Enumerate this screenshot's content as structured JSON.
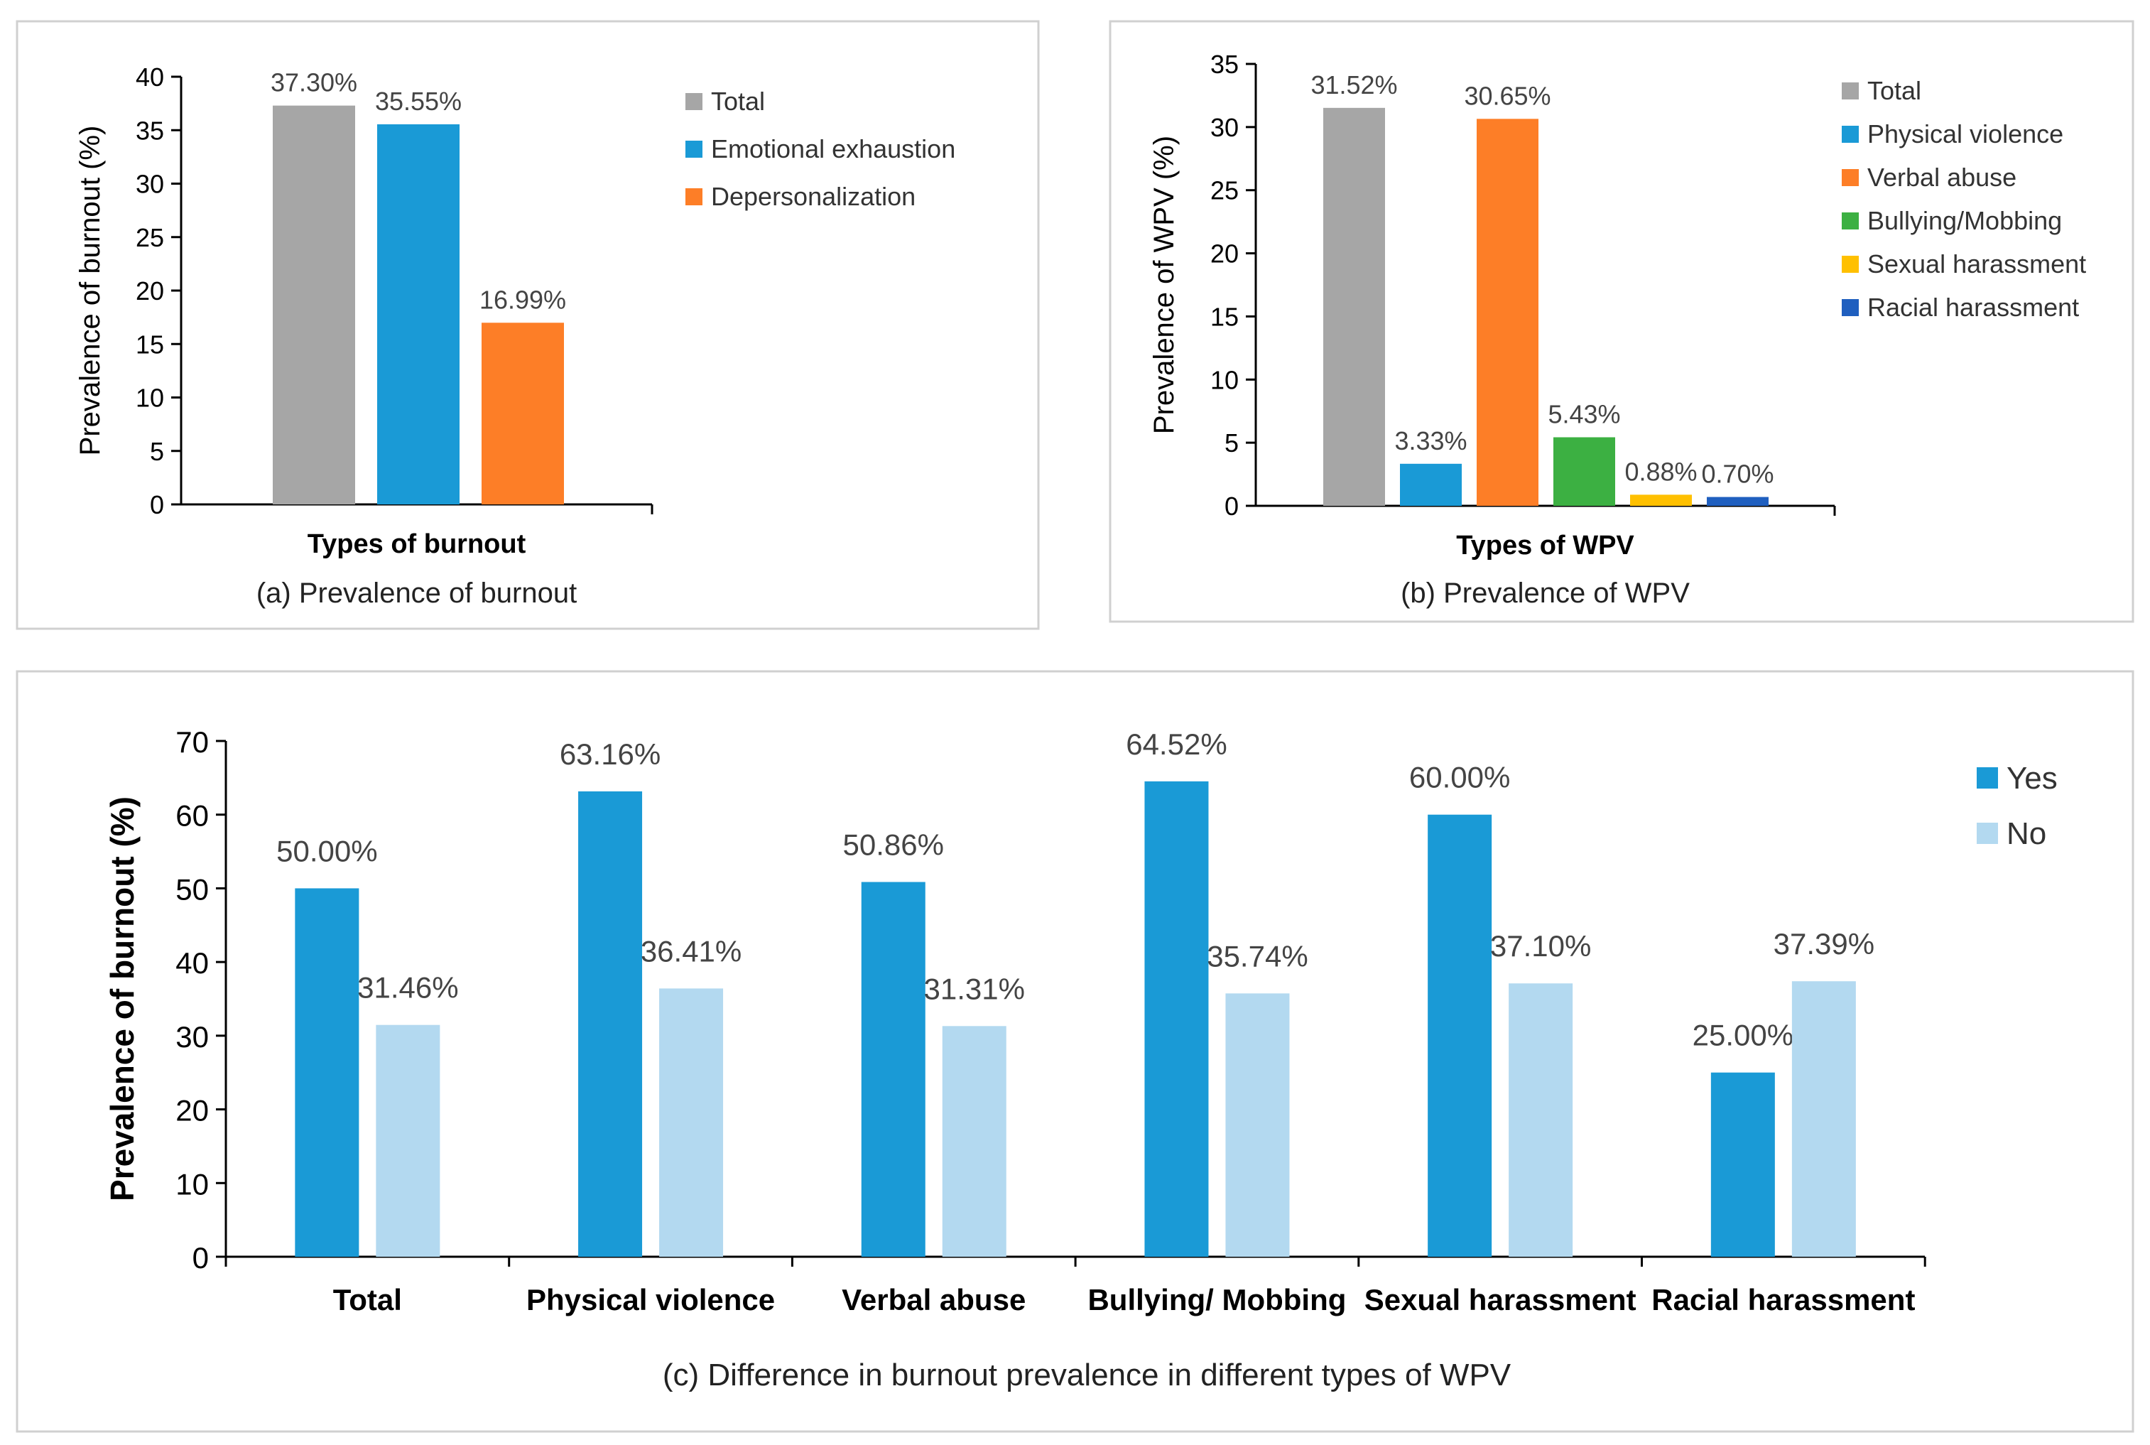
{
  "colors": {
    "total": "#a6a6a6",
    "emotional_exhaustion": "#1a9ad6",
    "depersonalization": "#fd7e27",
    "physical_violence": "#1a9ad6",
    "verbal_abuse": "#fd7e27",
    "bullying": "#3cb042",
    "sexual_harassment": "#ffc000",
    "racial_harassment": "#1f5fbf",
    "yes": "#1a9ad6",
    "no": "#b3d9f0"
  },
  "chart_data": [
    {
      "type": "bar",
      "panel": "a",
      "title": "(a) Prevalence of burnout",
      "xlabel": "Types of burnout",
      "ylabel": "Prevalence of burnout (%)",
      "ylim": [
        0,
        40
      ],
      "yticks": [
        "0",
        "5",
        "10",
        "15",
        "20",
        "25",
        "30",
        "35",
        "40"
      ],
      "series": [
        {
          "name": "Total",
          "values": [
            37.3
          ],
          "label": "37.30%",
          "color_key": "total"
        },
        {
          "name": "Emotional exhaustion",
          "values": [
            35.55
          ],
          "label": "35.55%",
          "color_key": "emotional_exhaustion"
        },
        {
          "name": "Depersonalization",
          "values": [
            16.99
          ],
          "label": "16.99%",
          "color_key": "depersonalization"
        }
      ],
      "legend": "right"
    },
    {
      "type": "bar",
      "panel": "b",
      "title": "(b) Prevalence of WPV",
      "xlabel": "Types of WPV",
      "ylabel": "Prevalence of  WPV (%)",
      "ylim": [
        0,
        35
      ],
      "yticks": [
        "0",
        "5",
        "10",
        "15",
        "20",
        "25",
        "30",
        "35"
      ],
      "series": [
        {
          "name": "Total",
          "values": [
            31.52
          ],
          "label": "31.52%",
          "color_key": "total"
        },
        {
          "name": "Physical violence",
          "values": [
            3.33
          ],
          "label": "3.33%",
          "color_key": "physical_violence"
        },
        {
          "name": "Verbal abuse",
          "values": [
            30.65
          ],
          "label": "30.65%",
          "color_key": "verbal_abuse"
        },
        {
          "name": "Bullying/Mobbing",
          "values": [
            5.43
          ],
          "label": "5.43%",
          "color_key": "bullying"
        },
        {
          "name": "Sexual harassment",
          "values": [
            0.88
          ],
          "label": "0.88%",
          "color_key": "sexual_harassment"
        },
        {
          "name": "Racial harassment",
          "values": [
            0.7
          ],
          "label": "0.70%",
          "color_key": "racial_harassment"
        }
      ],
      "legend": "right"
    },
    {
      "type": "bar",
      "panel": "c",
      "title": "(c)   Difference in burnout prevalence in different types of WPV",
      "xlabel": "",
      "ylabel": "Prevalence of burnout (%)",
      "ylim": [
        0,
        70
      ],
      "yticks": [
        "0",
        "10",
        "20",
        "30",
        "40",
        "50",
        "60",
        "70"
      ],
      "categories": [
        "Total",
        "Physical violence",
        "Verbal abuse",
        "Bullying/ Mobbing",
        "Sexual harassment",
        "Racial harassment"
      ],
      "series": [
        {
          "name": "Yes",
          "values": [
            50.0,
            63.16,
            50.86,
            64.52,
            60.0,
            25.0
          ],
          "labels": [
            "50.00%",
            "63.16%",
            "50.86%",
            "64.52%",
            "60.00%",
            "25.00%"
          ],
          "color_key": "yes"
        },
        {
          "name": "No",
          "values": [
            31.46,
            36.41,
            31.31,
            35.74,
            37.1,
            37.39
          ],
          "labels": [
            "31.46%",
            "36.41%",
            "31.31%",
            "35.74%",
            "37.10%",
            "37.39%"
          ],
          "color_key": "no"
        }
      ],
      "legend": "top-right"
    }
  ]
}
